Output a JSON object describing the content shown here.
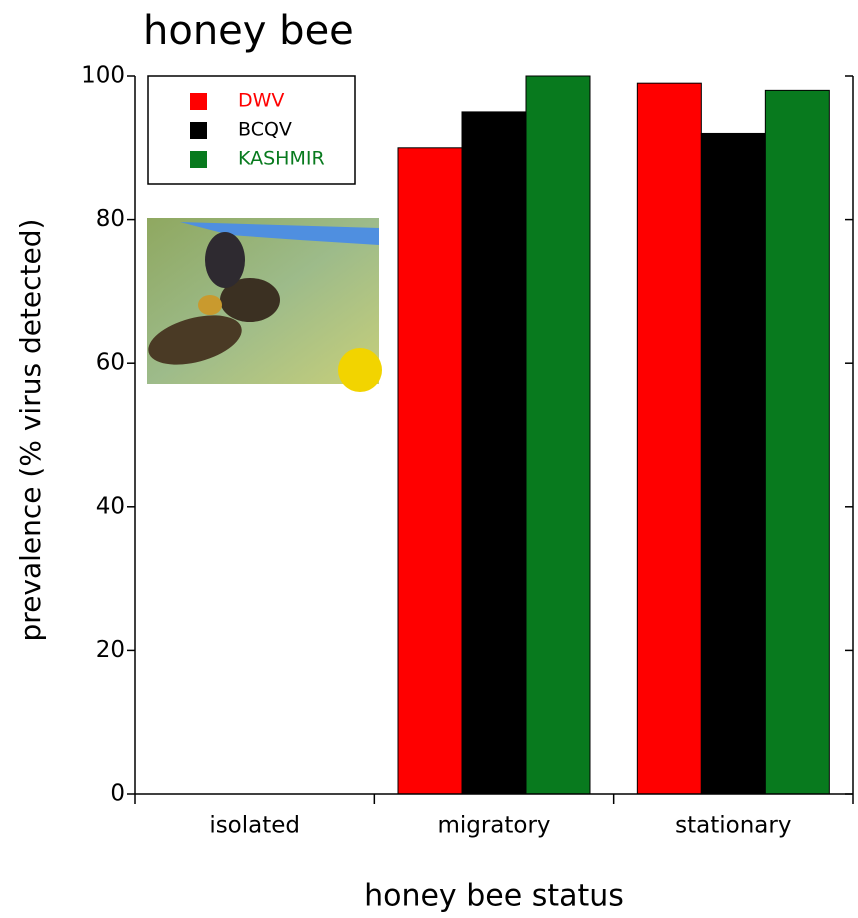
{
  "chart_data": {
    "type": "bar",
    "title": "honey bee",
    "x_label": "honey bee status",
    "y_label": "prevalence (% virus detected)",
    "categories": [
      "isolated",
      "migratory",
      "stationary"
    ],
    "series": [
      {
        "name": "DWV",
        "color": "#ff0000",
        "values": [
          0,
          90,
          99
        ]
      },
      {
        "name": "BCQV",
        "color": "#000000",
        "values": [
          0,
          95,
          92
        ]
      },
      {
        "name": "KASHMIR",
        "color": "#087a1e",
        "values": [
          0,
          100,
          98
        ]
      }
    ],
    "ylim": [
      0,
      100
    ],
    "yticks": [
      0,
      20,
      40,
      60,
      80,
      100
    ],
    "legend": "upper left"
  }
}
